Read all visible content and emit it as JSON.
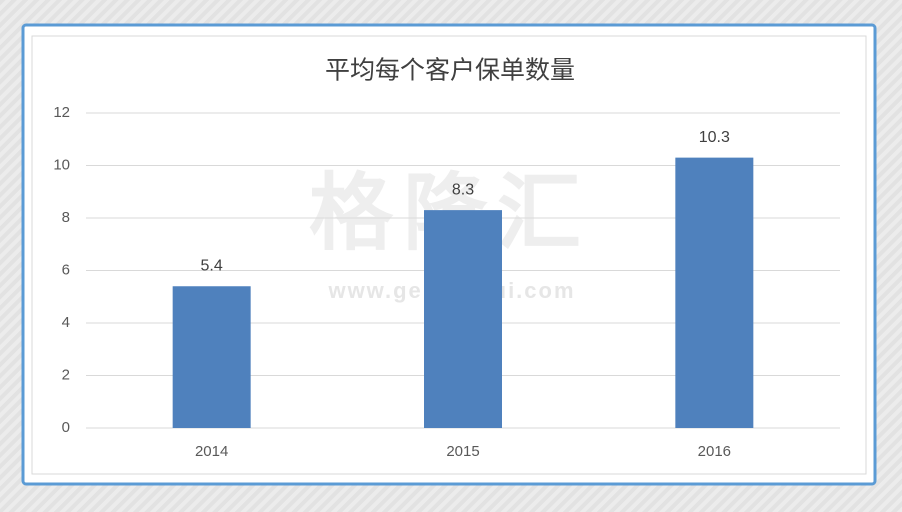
{
  "chart_data": {
    "type": "bar",
    "title": "平均每个客户保单数量",
    "categories": [
      "2014",
      "2015",
      "2016"
    ],
    "values": [
      5.4,
      8.3,
      10.3
    ],
    "color": "#4f81bd",
    "ylim": [
      0,
      12
    ],
    "yticks": [
      0,
      2,
      4,
      6,
      8,
      10,
      12
    ],
    "grid": true,
    "watermark": {
      "brand": "格隆汇",
      "url": "www.gelonghui.com"
    }
  }
}
